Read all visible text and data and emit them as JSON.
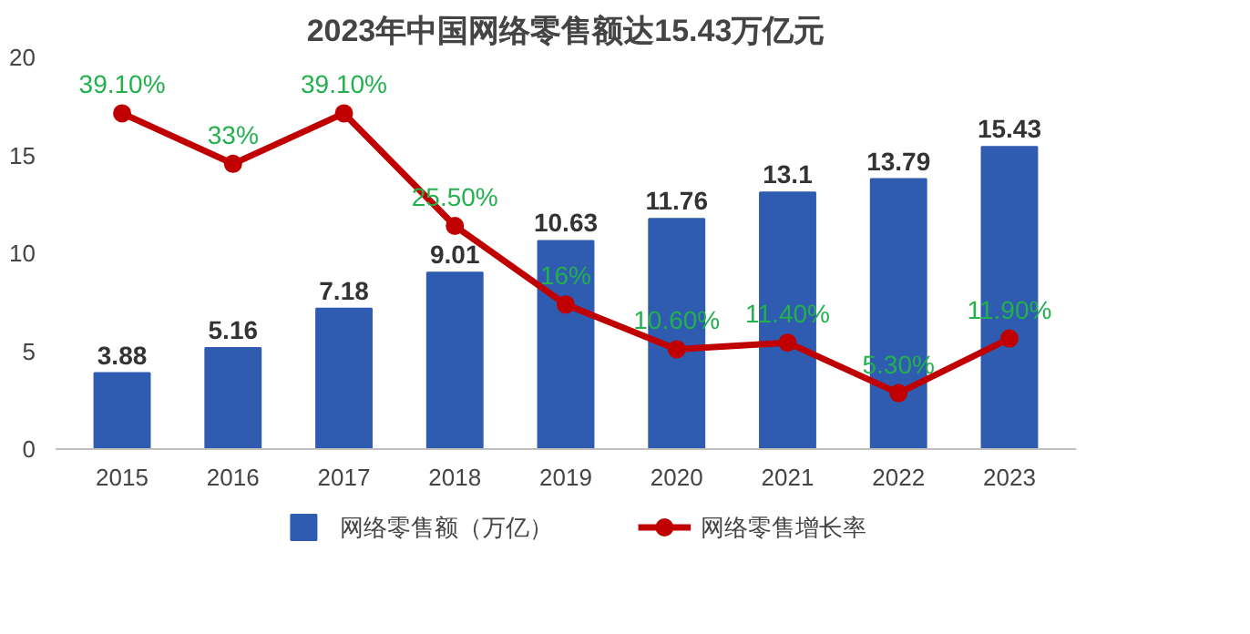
{
  "chart_data": {
    "type": "bar",
    "title": "2023年中国网络零售额达15.43万亿元",
    "categories": [
      "2015",
      "2016",
      "2017",
      "2018",
      "2019",
      "2020",
      "2021",
      "2022",
      "2023"
    ],
    "series": [
      {
        "name": "网络零售额（万亿）",
        "color": "#2f5bb0",
        "values": [
          3.88,
          5.16,
          7.18,
          9.01,
          10.63,
          11.76,
          13.1,
          13.79,
          15.43
        ],
        "value_labels": [
          "3.88",
          "5.16",
          "7.18",
          "9.01",
          "10.63",
          "11.76",
          "13.1",
          "13.79",
          "15.43"
        ]
      },
      {
        "name": "网络零售增长率",
        "type": "line",
        "axis": "y2",
        "color": "#c00000",
        "values": [
          39.1,
          33,
          39.1,
          25.5,
          16,
          10.6,
          11.4,
          5.3,
          11.9
        ],
        "value_labels": [
          "39.10%",
          "33%",
          "39.10%",
          "25.50%",
          "16%",
          "10.60%",
          "11.40%",
          "5.30%",
          "11.90%"
        ]
      }
    ],
    "ylim": [
      0,
      20
    ],
    "yticks": [
      0,
      5,
      10,
      15,
      20
    ],
    "marker": "circle",
    "legend": "bottom",
    "grid": false
  }
}
